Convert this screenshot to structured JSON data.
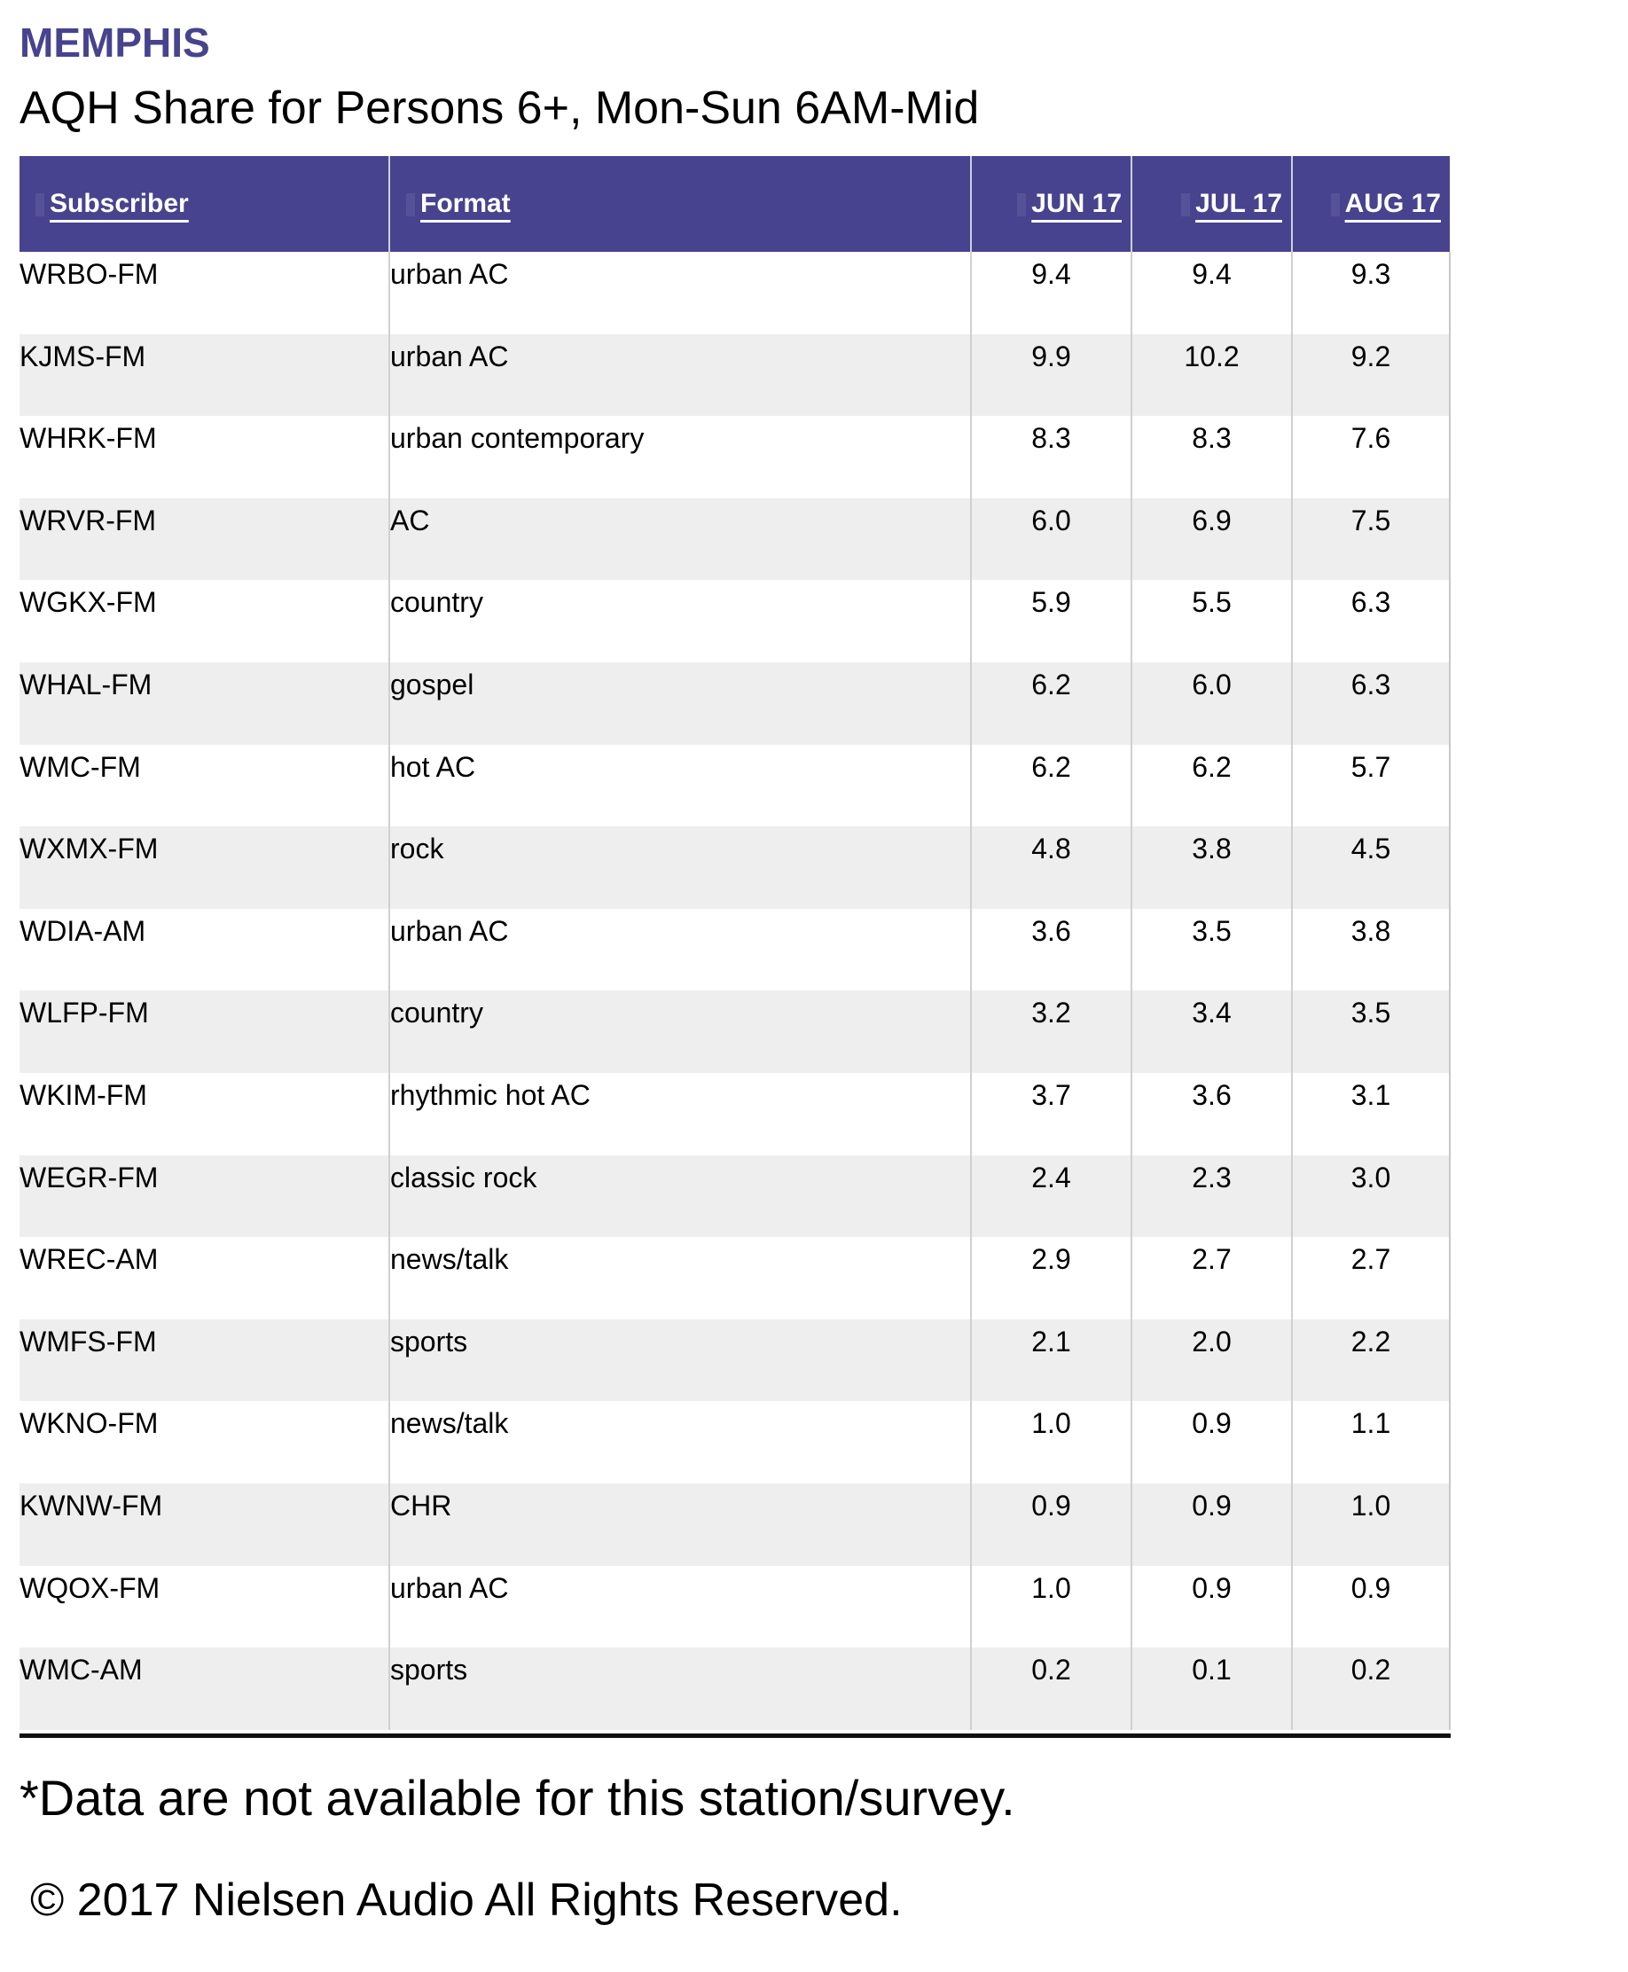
{
  "header": {
    "market": "MEMPHIS",
    "subtitle": "AQH Share for Persons 6+, Mon-Sun 6AM-Mid"
  },
  "colors": {
    "header_bg": "#47438e",
    "market_title": "#47438e",
    "stripe": "#eeeeee"
  },
  "table": {
    "columns": [
      "Subscriber",
      "Format",
      "JUN 17",
      "JUL 17",
      "AUG 17"
    ],
    "rows": [
      [
        "WRBO-FM",
        "urban AC",
        "9.4",
        "9.4",
        "9.3"
      ],
      [
        "KJMS-FM",
        "urban AC",
        "9.9",
        "10.2",
        "9.2"
      ],
      [
        "WHRK-FM",
        "urban contemporary",
        "8.3",
        "8.3",
        "7.6"
      ],
      [
        "WRVR-FM",
        "AC",
        "6.0",
        "6.9",
        "7.5"
      ],
      [
        "WGKX-FM",
        "country",
        "5.9",
        "5.5",
        "6.3"
      ],
      [
        "WHAL-FM",
        "gospel",
        "6.2",
        "6.0",
        "6.3"
      ],
      [
        "WMC-FM",
        "hot AC",
        "6.2",
        "6.2",
        "5.7"
      ],
      [
        "WXMX-FM",
        "rock",
        "4.8",
        "3.8",
        "4.5"
      ],
      [
        "WDIA-AM",
        "urban AC",
        "3.6",
        "3.5",
        "3.8"
      ],
      [
        "WLFP-FM",
        "country",
        "3.2",
        "3.4",
        "3.5"
      ],
      [
        "WKIM-FM",
        "rhythmic hot AC",
        "3.7",
        "3.6",
        "3.1"
      ],
      [
        "WEGR-FM",
        "classic rock",
        "2.4",
        "2.3",
        "3.0"
      ],
      [
        "WREC-AM",
        "news/talk",
        "2.9",
        "2.7",
        "2.7"
      ],
      [
        "WMFS-FM",
        "sports",
        "2.1",
        "2.0",
        "2.2"
      ],
      [
        "WKNO-FM",
        "news/talk",
        "1.0",
        "0.9",
        "1.1"
      ],
      [
        "KWNW-FM",
        "CHR",
        "0.9",
        "0.9",
        "1.0"
      ],
      [
        "WQOX-FM",
        "urban AC",
        "1.0",
        "0.9",
        "0.9"
      ],
      [
        "WMC-AM",
        "sports",
        "0.2",
        "0.1",
        "0.2"
      ]
    ]
  },
  "footer": {
    "note": "*Data are not available for this station/survey.",
    "copyright": "© 2017 Nielsen Audio All Rights Reserved."
  }
}
